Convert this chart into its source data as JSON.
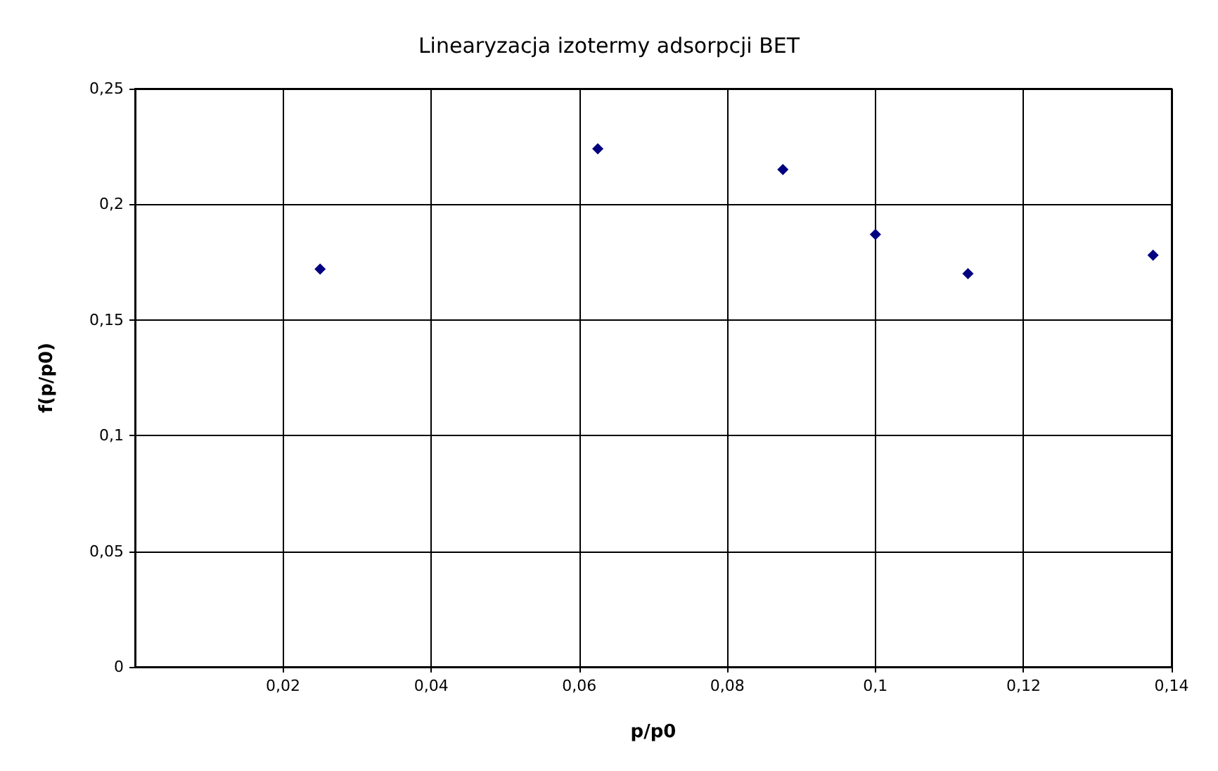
{
  "chart_data": {
    "type": "scatter",
    "title": "Linearyzacja izotermy adsorpcji BET",
    "xlabel": "p/p0",
    "ylabel": "f(p/p0)",
    "x": [
      0.025,
      0.0625,
      0.0875,
      0.1,
      0.1125,
      0.1375
    ],
    "series": [
      {
        "color": "#000080",
        "values": [
          0.172,
          0.224,
          0.215,
          0.187,
          0.17,
          0.178
        ]
      }
    ],
    "xlim": [
      0,
      0.14
    ],
    "ylim": [
      0,
      0.25
    ],
    "xticks": [
      {
        "value": 0.02,
        "label": "0,02"
      },
      {
        "value": 0.04,
        "label": "0,04"
      },
      {
        "value": 0.06,
        "label": "0,06"
      },
      {
        "value": 0.08,
        "label": "0,08"
      },
      {
        "value": 0.1,
        "label": "0,1"
      },
      {
        "value": 0.12,
        "label": "0,12"
      },
      {
        "value": 0.14,
        "label": "0,14"
      }
    ],
    "yticks": [
      0,
      {
        "value": 0.05,
        "label": "0,05"
      },
      {
        "value": 0.1,
        "label": "0,1"
      },
      {
        "value": 0.15,
        "label": "0,15"
      },
      {
        "value": 0.2,
        "label": "0,2"
      },
      {
        "value": 0.25,
        "label": "0,25"
      }
    ],
    "grid": true,
    "marker": "diamond"
  }
}
